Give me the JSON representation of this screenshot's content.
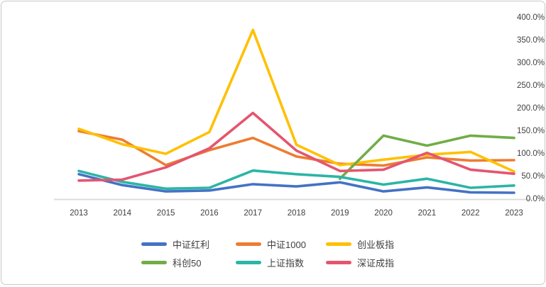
{
  "chart_data": {
    "type": "line",
    "title": "",
    "xlabel": "",
    "ylabel": "",
    "categories": [
      "2013",
      "2014",
      "2015",
      "2016",
      "2017",
      "2018",
      "2019",
      "2020",
      "2021",
      "2022",
      "2023"
    ],
    "y_tick_labels": [
      "400.0%",
      "350.0%",
      "300.0%",
      "250.0%",
      "200.0%",
      "150.0%",
      "100.0%",
      "50.0%",
      "0.0%"
    ],
    "ylim": [
      0,
      400
    ],
    "y_step": 50,
    "grid": false,
    "legend_position": "bottom",
    "series": [
      {
        "name": "中证红利",
        "color": "#4472C4",
        "values": [
          55,
          31,
          17,
          19,
          33,
          28,
          37,
          17,
          26,
          15,
          14
        ]
      },
      {
        "name": "中证1000",
        "color": "#ED7D31",
        "values": [
          150,
          131,
          75,
          108,
          135,
          94,
          78,
          74,
          92,
          85,
          86
        ]
      },
      {
        "name": "创业板指",
        "color": "#FFC000",
        "values": [
          155,
          121,
          100,
          148,
          373,
          120,
          75,
          87,
          98,
          104,
          61
        ]
      },
      {
        "name": "科创50",
        "color": "#70AD47",
        "values": [
          null,
          null,
          null,
          null,
          null,
          null,
          45,
          140,
          118,
          140,
          135
        ]
      },
      {
        "name": "上证指数",
        "color": "#2BB5A5",
        "values": [
          62,
          38,
          23,
          25,
          63,
          55,
          49,
          32,
          45,
          25,
          30
        ]
      },
      {
        "name": "深证成指",
        "color": "#E4556F",
        "values": [
          41,
          43,
          70,
          112,
          190,
          107,
          62,
          65,
          102,
          65,
          56
        ]
      }
    ]
  }
}
